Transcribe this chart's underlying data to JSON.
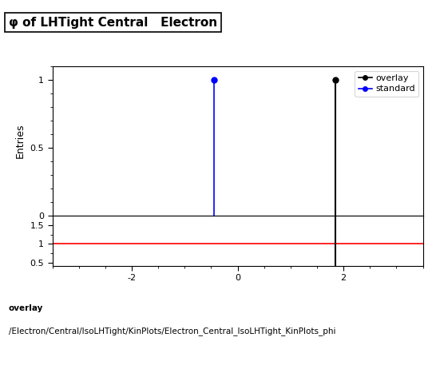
{
  "title": "φ of LHTight Central   Electron",
  "ylabel_main": "Entries",
  "xlabel": "",
  "xlim": [
    -3.5,
    3.5
  ],
  "ylim_main": [
    0,
    1.1
  ],
  "ylim_ratio": [
    0.42,
    1.75
  ],
  "overlay_x": 1.85,
  "overlay_y": 1.0,
  "standard_x": -0.45,
  "standard_y": 1.0,
  "overlay_color": "#000000",
  "standard_color": "#0000ff",
  "ratio_line_y": 1.0,
  "ratio_line_color": "#ff0000",
  "ratio_vline_x": 1.85,
  "ratio_vline_color": "#000000",
  "footer_line1": "overlay",
  "footer_line2": "/Electron/Central/IsoLHTight/KinPlots/Electron_Central_IsoLHTight_KinPlots_phi",
  "title_fontsize": 11,
  "axis_fontsize": 9,
  "tick_fontsize": 8,
  "footer_fontsize": 7.5
}
